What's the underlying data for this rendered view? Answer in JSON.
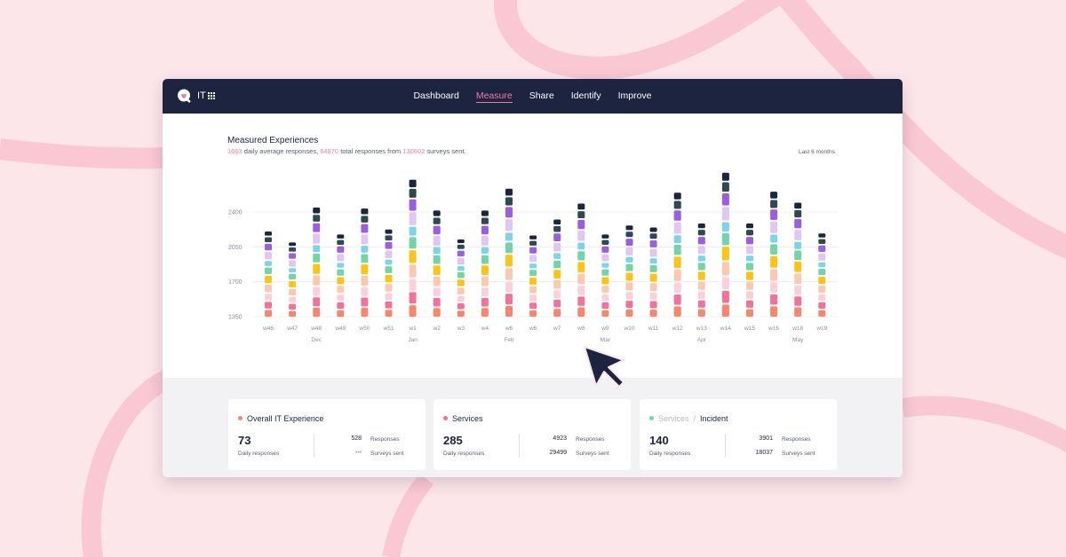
{
  "app": {
    "name": "IT"
  },
  "nav": {
    "items": [
      "Dashboard",
      "Measure",
      "Share",
      "Identify",
      "Improve"
    ],
    "active": "Measure"
  },
  "header": {
    "title": "Measured Experiences",
    "daily_avg": "1663",
    "daily_avg_text": " daily average responses, ",
    "total": "64870",
    "total_text": " total responses from ",
    "surveys": "130602",
    "surveys_text": " surveys sent.",
    "range": "Last 6 months"
  },
  "chart_data": {
    "type": "bar",
    "stacked": true,
    "title": "Measured Experiences",
    "ylim": [
      1350,
      2400
    ],
    "yticks": [
      1350,
      1700,
      2050,
      2400
    ],
    "grid": true,
    "categories": [
      "w46",
      "w47",
      "w48",
      "w49",
      "w50",
      "w51",
      "w1",
      "w2",
      "w3",
      "w4",
      "w6",
      "w6",
      "w7",
      "w8",
      "w9",
      "w10",
      "w11",
      "w12",
      "w13",
      "w14",
      "w15",
      "w16",
      "w18",
      "w19"
    ],
    "month_labels": [
      {
        "label": "Dec",
        "at": "w48"
      },
      {
        "label": "Jan",
        "at": "w1"
      },
      {
        "label": "Feb",
        "at": "w6"
      },
      {
        "label": "Mar",
        "at": "w9"
      },
      {
        "label": "Apr",
        "at": "w13"
      },
      {
        "label": "May",
        "at": "w18"
      }
    ],
    "totals": [
      2220,
      2110,
      2460,
      2190,
      2450,
      2240,
      2740,
      2430,
      2140,
      2430,
      2650,
      2180,
      2340,
      2500,
      2190,
      2280,
      2260,
      2610,
      2300,
      2810,
      2300,
      2620,
      2510,
      2200
    ],
    "series_colors": [
      "#f9866b",
      "#f4729a",
      "#fbd0d8",
      "#fcc8b0",
      "#fcc419",
      "#74d3a8",
      "#7dd4e8",
      "#e0c6f2",
      "#9c5ee0",
      "#2d4a4e",
      "#1c2440"
    ]
  },
  "cards": [
    {
      "title": "Overall IT Experience",
      "dot_color": "#f9866b",
      "value": "73",
      "value_label": "Daily responses",
      "responses": "528",
      "responses_label": "Responses",
      "surveys": "---",
      "surveys_label": "Surveys sent"
    },
    {
      "title": "Services",
      "dot_color": "#f4729a",
      "value": "285",
      "value_label": "Daily responses",
      "responses": "4923",
      "responses_label": "Responses",
      "surveys": "29499",
      "surveys_label": "Surveys sent"
    },
    {
      "crumb": "Services",
      "title": "Incident",
      "dot_color": "#74d3a8",
      "value": "140",
      "value_label": "Daily responses",
      "responses": "3901",
      "responses_label": "Responses",
      "surveys": "18037",
      "surveys_label": "Surveys sent"
    }
  ]
}
